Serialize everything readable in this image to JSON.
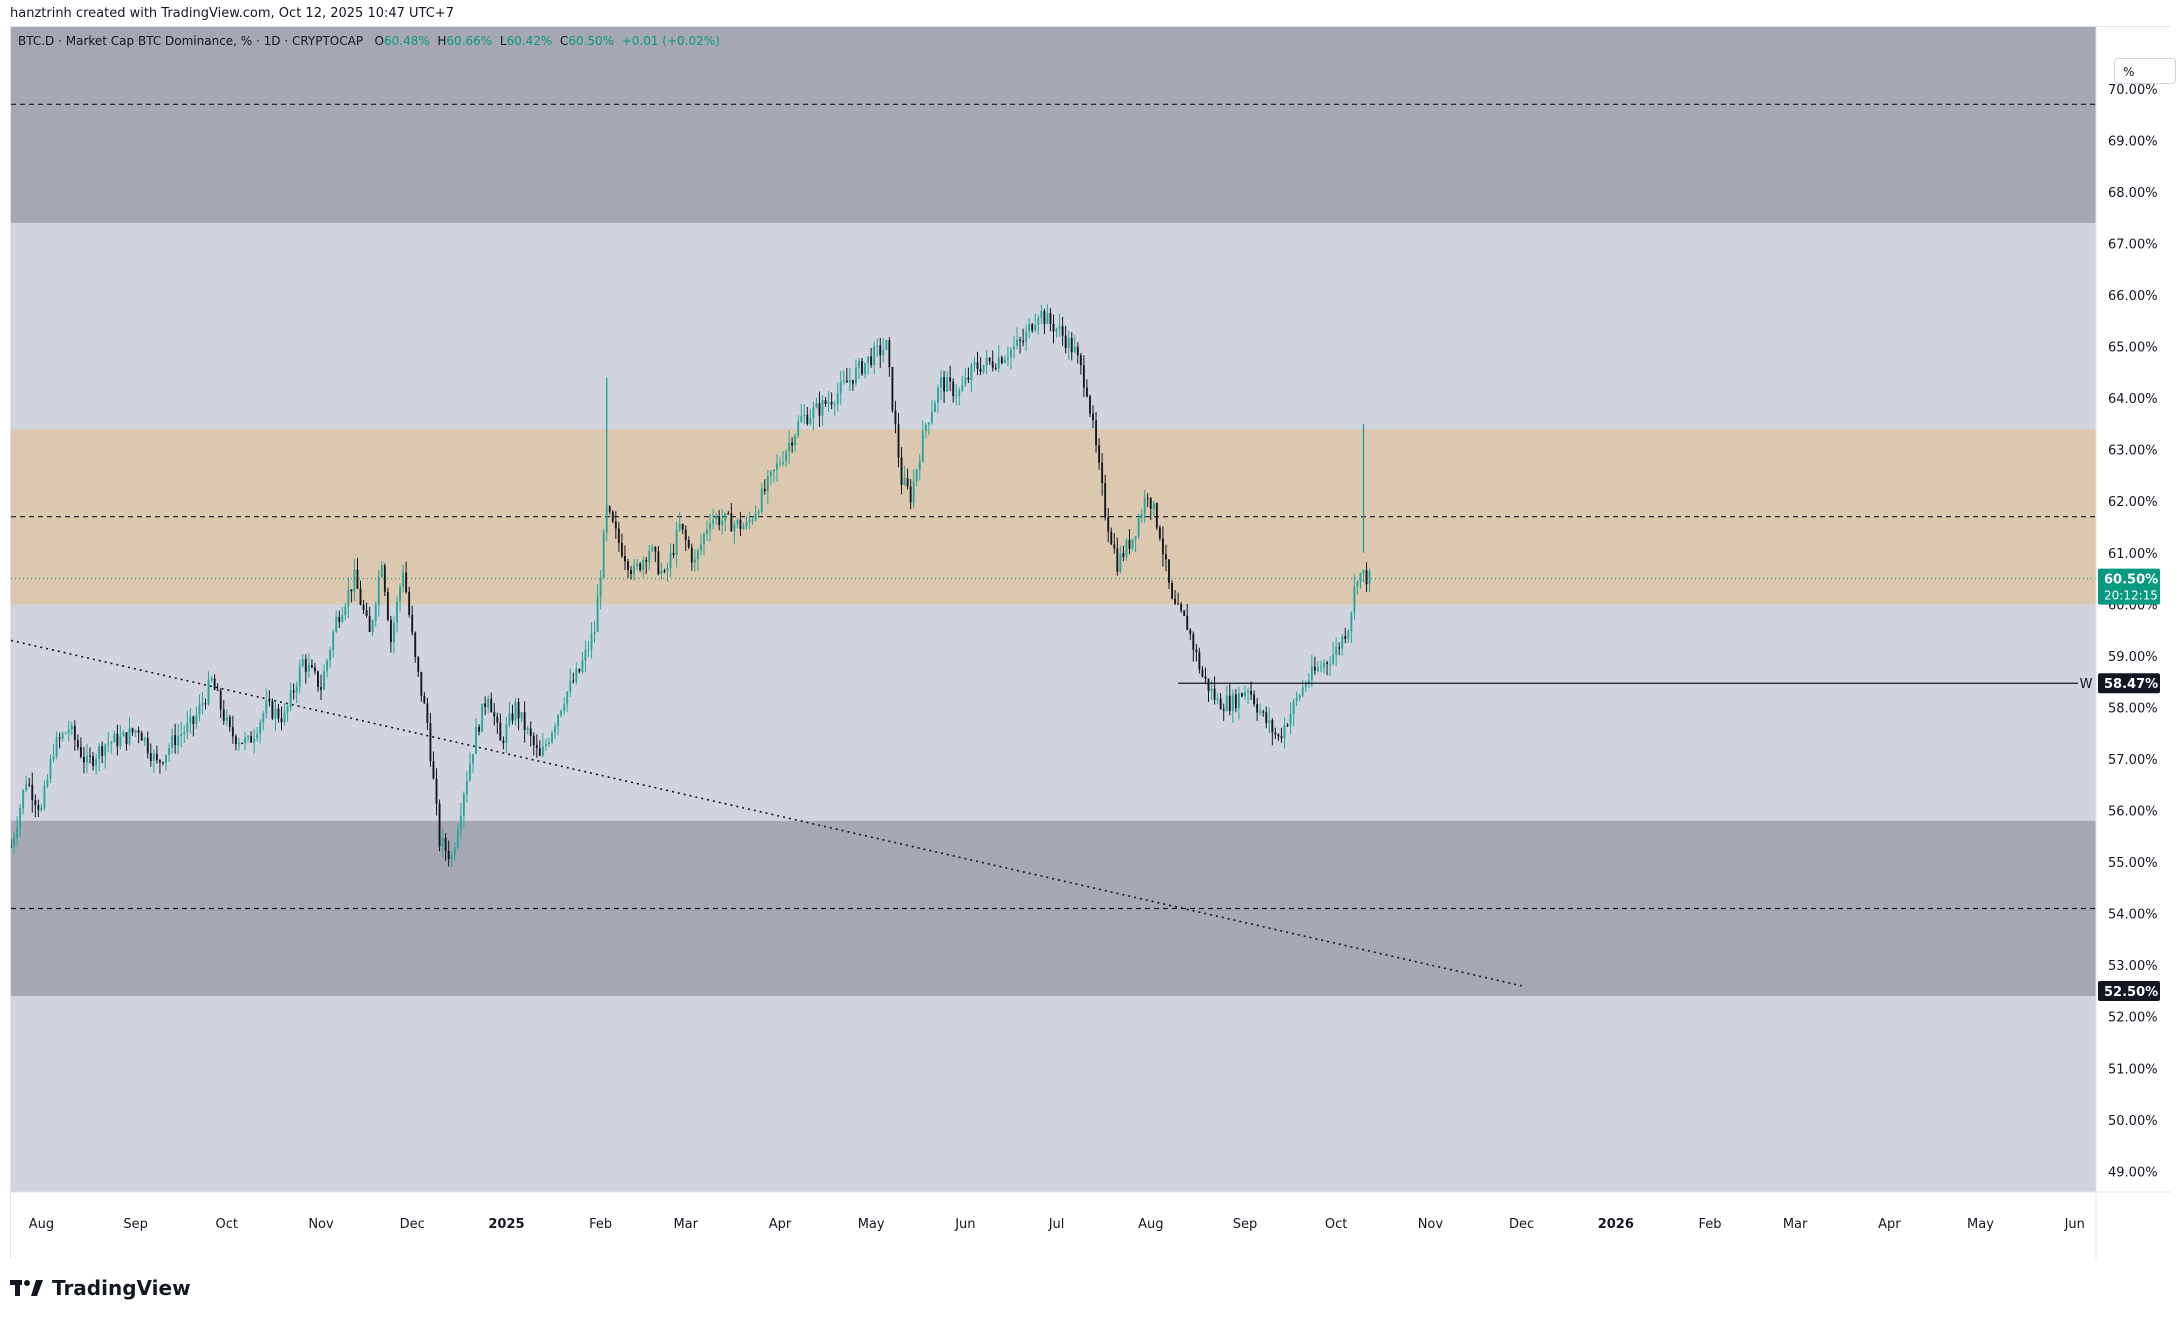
{
  "byline": "hanztrinh created with TradingView.com, Oct 12, 2025 10:47 UTC+7",
  "legend": {
    "symbol_label": "BTC.D · Market Cap BTC Dominance, % · 1D · CRYPTOCAP",
    "o_label": "O",
    "o_value": "60.48%",
    "h_label": "H",
    "h_value": "60.66%",
    "l_label": "L",
    "l_value": "60.42%",
    "c_label": "C",
    "c_value": "60.50%",
    "change": "+0.01 (+0.02%)"
  },
  "unit_selector": "%",
  "brand": "TradingView",
  "colors": {
    "up": "#26a69a",
    "down": "#131722",
    "accent": "#089981",
    "zone_dark": "#a5a8b1",
    "zone_light": "#d1d4dc",
    "zone_orange": "#dcc8ae"
  },
  "chart_data": {
    "type": "candlestick",
    "symbol": "BTC.D",
    "interval": "1D",
    "ylim": [
      48.6,
      71.2
    ],
    "y_ticks": [
      "49.00%",
      "50.00%",
      "51.00%",
      "52.00%",
      "53.00%",
      "54.00%",
      "55.00%",
      "56.00%",
      "57.00%",
      "58.00%",
      "59.00%",
      "60.00%",
      "61.00%",
      "62.00%",
      "63.00%",
      "64.00%",
      "65.00%",
      "66.00%",
      "67.00%",
      "68.00%",
      "69.00%",
      "70.00%"
    ],
    "x_range": [
      "2024-07-22",
      "2026-06-08"
    ],
    "x_ticks": [
      {
        "label": "Aug",
        "date": "2024-08-01",
        "bold": false
      },
      {
        "label": "Sep",
        "date": "2024-09-01",
        "bold": false
      },
      {
        "label": "Oct",
        "date": "2024-10-01",
        "bold": false
      },
      {
        "label": "Nov",
        "date": "2024-11-01",
        "bold": false
      },
      {
        "label": "Dec",
        "date": "2024-12-01",
        "bold": false
      },
      {
        "label": "2025",
        "date": "2025-01-01",
        "bold": true
      },
      {
        "label": "Feb",
        "date": "2025-02-01",
        "bold": false
      },
      {
        "label": "Mar",
        "date": "2025-03-01",
        "bold": false
      },
      {
        "label": "Apr",
        "date": "2025-04-01",
        "bold": false
      },
      {
        "label": "May",
        "date": "2025-05-01",
        "bold": false
      },
      {
        "label": "Jun",
        "date": "2025-06-01",
        "bold": false
      },
      {
        "label": "Jul",
        "date": "2025-07-01",
        "bold": false
      },
      {
        "label": "Aug",
        "date": "2025-08-01",
        "bold": false
      },
      {
        "label": "Sep",
        "date": "2025-09-01",
        "bold": false
      },
      {
        "label": "Oct",
        "date": "2025-10-01",
        "bold": false
      },
      {
        "label": "Nov",
        "date": "2025-11-01",
        "bold": false
      },
      {
        "label": "Dec",
        "date": "2025-12-01",
        "bold": false
      },
      {
        "label": "2026",
        "date": "2026-01-01",
        "bold": true
      },
      {
        "label": "Feb",
        "date": "2026-02-01",
        "bold": false
      },
      {
        "label": "Mar",
        "date": "2026-03-01",
        "bold": false
      },
      {
        "label": "Apr",
        "date": "2026-04-01",
        "bold": false
      },
      {
        "label": "May",
        "date": "2026-05-01",
        "bold": false
      },
      {
        "label": "Jun",
        "date": "2026-06-01",
        "bold": false
      }
    ],
    "zones": [
      {
        "from": 67.4,
        "to": 71.2,
        "color": "zone_dark"
      },
      {
        "from": 52.4,
        "to": 55.8,
        "color": "zone_dark"
      },
      {
        "from": 60.0,
        "to": 63.4,
        "color": "zone_orange"
      }
    ],
    "dashed_levels": [
      69.7,
      61.7,
      54.1
    ],
    "current_price_line": 60.5,
    "trendline": {
      "start": {
        "date": "2024-07-22",
        "value": 59.3
      },
      "end": {
        "date": "2025-12-01",
        "value": 52.6
      }
    },
    "horizontal_line": {
      "start_date": "2025-08-10",
      "value": 58.47,
      "label": "W"
    },
    "price_labels": [
      {
        "value": 60.5,
        "text": "60.50%",
        "subtext": "20:12:15",
        "bg": "#089981"
      },
      {
        "value": 58.47,
        "text": "58.47%",
        "bg": "#131722"
      },
      {
        "value": 52.5,
        "text": "52.50%",
        "bg": "#131722"
      }
    ],
    "price_path": [
      [
        "2024-07-22",
        55.3
      ],
      [
        "2024-07-27",
        56.6
      ],
      [
        "2024-08-01",
        56.0
      ],
      [
        "2024-08-05",
        57.2
      ],
      [
        "2024-08-10",
        57.6
      ],
      [
        "2024-08-16",
        56.9
      ],
      [
        "2024-08-22",
        57.3
      ],
      [
        "2024-08-28",
        57.4
      ],
      [
        "2024-09-02",
        57.6
      ],
      [
        "2024-09-08",
        56.9
      ],
      [
        "2024-09-14",
        57.4
      ],
      [
        "2024-09-20",
        57.7
      ],
      [
        "2024-09-26",
        58.5
      ],
      [
        "2024-10-02",
        57.5
      ],
      [
        "2024-10-08",
        57.3
      ],
      [
        "2024-10-14",
        58.0
      ],
      [
        "2024-10-20",
        57.8
      ],
      [
        "2024-10-26",
        58.9
      ],
      [
        "2024-11-01",
        58.4
      ],
      [
        "2024-11-06",
        59.7
      ],
      [
        "2024-11-12",
        60.5
      ],
      [
        "2024-11-17",
        59.4
      ],
      [
        "2024-11-21",
        60.9
      ],
      [
        "2024-11-24",
        59.3
      ],
      [
        "2024-11-28",
        60.7
      ],
      [
        "2024-12-02",
        58.9
      ],
      [
        "2024-12-06",
        57.7
      ],
      [
        "2024-12-10",
        55.4
      ],
      [
        "2024-12-14",
        55.1
      ],
      [
        "2024-12-18",
        56.4
      ],
      [
        "2024-12-22",
        57.5
      ],
      [
        "2024-12-26",
        58.3
      ],
      [
        "2024-12-30",
        57.3
      ],
      [
        "2025-01-04",
        58.0
      ],
      [
        "2025-01-08",
        57.5
      ],
      [
        "2025-01-12",
        57.0
      ],
      [
        "2025-01-16",
        57.6
      ],
      [
        "2025-01-20",
        58.2
      ],
      [
        "2025-01-25",
        58.7
      ],
      [
        "2025-01-30",
        59.5
      ],
      [
        "2025-02-03",
        61.8
      ],
      [
        "2025-02-07",
        61.2
      ],
      [
        "2025-02-12",
        60.6
      ],
      [
        "2025-02-17",
        61.1
      ],
      [
        "2025-02-22",
        60.5
      ],
      [
        "2025-02-27",
        61.5
      ],
      [
        "2025-03-04",
        60.8
      ],
      [
        "2025-03-09",
        61.7
      ],
      [
        "2025-03-15",
        61.6
      ],
      [
        "2025-03-21",
        61.5
      ],
      [
        "2025-03-27",
        62.2
      ],
      [
        "2025-04-02",
        62.9
      ],
      [
        "2025-04-08",
        63.6
      ],
      [
        "2025-04-14",
        63.8
      ],
      [
        "2025-04-20",
        64.1
      ],
      [
        "2025-04-26",
        64.5
      ],
      [
        "2025-05-01",
        64.8
      ],
      [
        "2025-05-06",
        65.0
      ],
      [
        "2025-05-08",
        63.9
      ],
      [
        "2025-05-11",
        62.4
      ],
      [
        "2025-05-14",
        62.1
      ],
      [
        "2025-05-19",
        63.5
      ],
      [
        "2025-05-24",
        64.3
      ],
      [
        "2025-05-30",
        64.1
      ],
      [
        "2025-06-04",
        64.6
      ],
      [
        "2025-06-10",
        64.7
      ],
      [
        "2025-06-15",
        64.9
      ],
      [
        "2025-06-20",
        65.1
      ],
      [
        "2025-06-25",
        65.7
      ],
      [
        "2025-06-28",
        65.5
      ],
      [
        "2025-07-02",
        65.3
      ],
      [
        "2025-07-07",
        64.9
      ],
      [
        "2025-07-11",
        64.2
      ],
      [
        "2025-07-14",
        63.0
      ],
      [
        "2025-07-17",
        61.8
      ],
      [
        "2025-07-21",
        60.8
      ],
      [
        "2025-07-26",
        61.3
      ],
      [
        "2025-07-31",
        62.2
      ],
      [
        "2025-08-04",
        61.4
      ],
      [
        "2025-08-08",
        60.0
      ],
      [
        "2025-08-13",
        59.6
      ],
      [
        "2025-08-18",
        58.6
      ],
      [
        "2025-08-23",
        58.1
      ],
      [
        "2025-08-28",
        58.1
      ],
      [
        "2025-09-02",
        58.4
      ],
      [
        "2025-09-07",
        57.8
      ],
      [
        "2025-09-12",
        57.4
      ],
      [
        "2025-09-16",
        57.9
      ],
      [
        "2025-09-21",
        58.5
      ],
      [
        "2025-09-26",
        58.8
      ],
      [
        "2025-10-01",
        59.1
      ],
      [
        "2025-10-05",
        59.6
      ],
      [
        "2025-10-08",
        60.6
      ],
      [
        "2025-10-12",
        60.5
      ]
    ],
    "spikes": [
      {
        "date": "2025-02-03",
        "high": 64.4
      },
      {
        "date": "2025-10-10",
        "high": 63.5
      }
    ]
  }
}
